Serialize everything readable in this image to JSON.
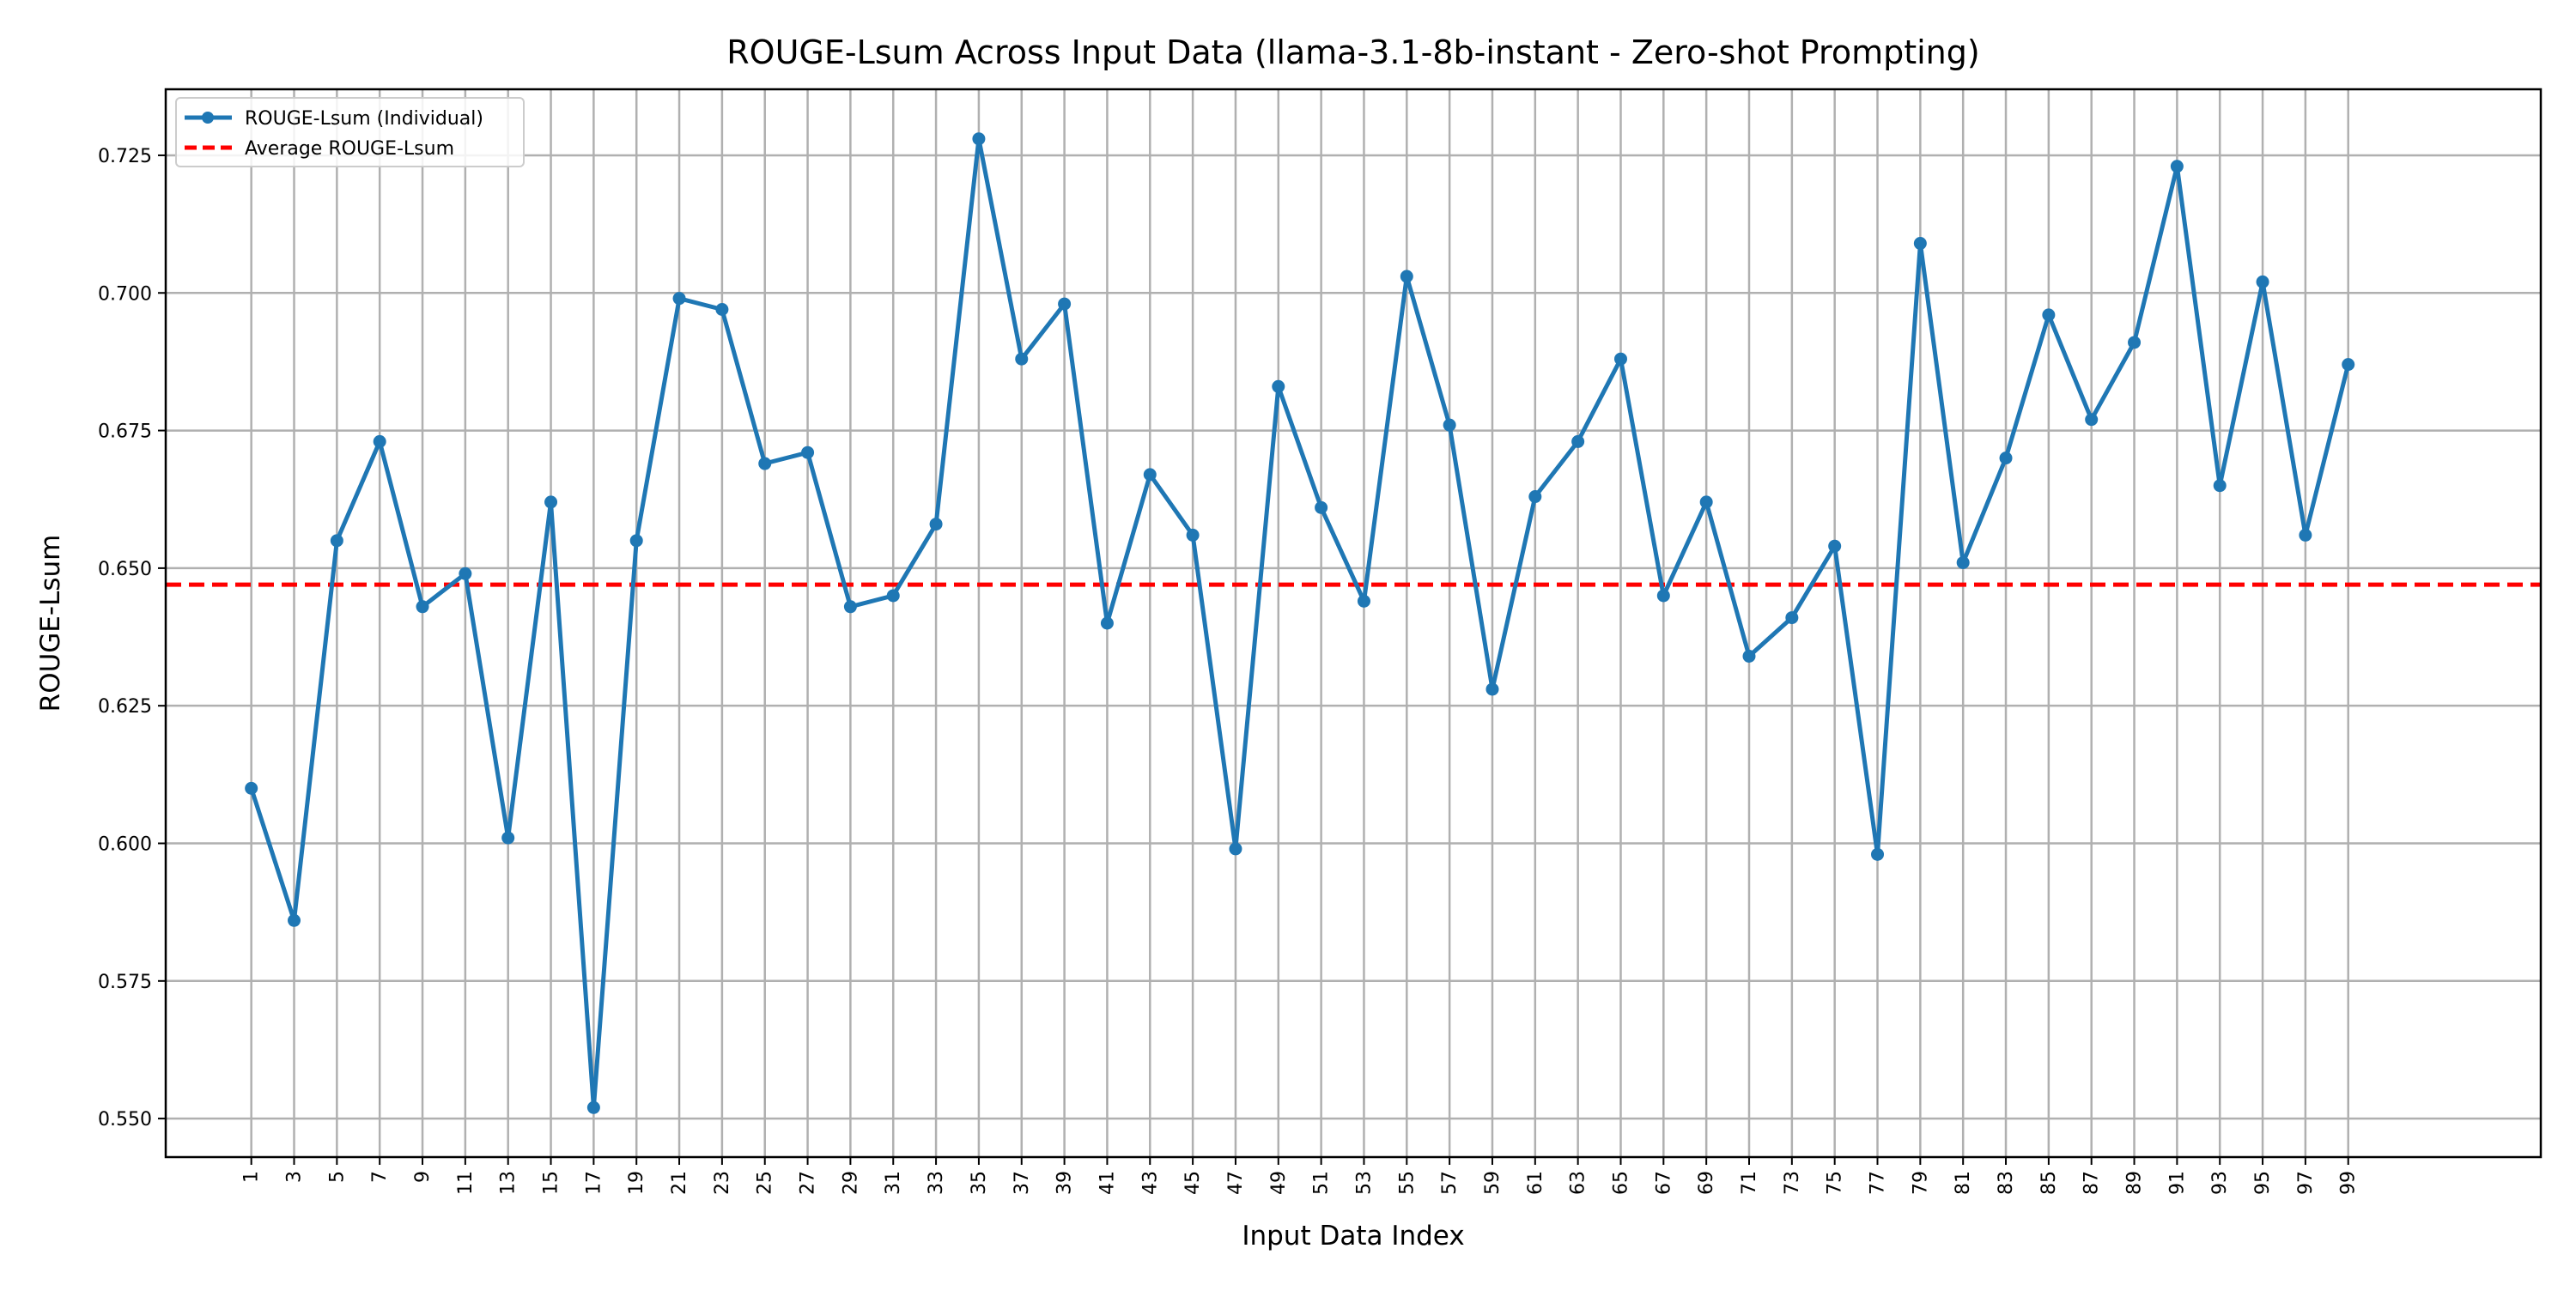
{
  "chart_data": {
    "type": "line",
    "title": "ROUGE-Lsum Across Input Data (llama-3.1-8b-instant - Zero-shot Prompting)",
    "xlabel": "Input Data Index",
    "ylabel": "ROUGE-Lsum",
    "xlim": [
      -3,
      108
    ],
    "ylim": [
      0.543,
      0.737
    ],
    "x_ticks": [
      1,
      3,
      5,
      7,
      9,
      11,
      13,
      15,
      17,
      19,
      21,
      23,
      25,
      27,
      29,
      31,
      33,
      35,
      37,
      39,
      41,
      43,
      45,
      47,
      49,
      51,
      53,
      55,
      57,
      59,
      61,
      63,
      65,
      67,
      69,
      71,
      73,
      75,
      77,
      79,
      81,
      83,
      85,
      87,
      89,
      91,
      93,
      95,
      97,
      99
    ],
    "x_tick_labels": [
      "1",
      "3",
      "5",
      "7",
      "9",
      "11",
      "13",
      "15",
      "17",
      "19",
      "21",
      "23",
      "25",
      "27",
      "29",
      "31",
      "33",
      "35",
      "37",
      "39",
      "41",
      "43",
      "45",
      "47",
      "49",
      "51",
      "53",
      "55",
      "57",
      "59",
      "61",
      "63",
      "65",
      "67",
      "69",
      "71",
      "73",
      "75",
      "77",
      "79",
      "81",
      "83",
      "85",
      "87",
      "89",
      "91",
      "93",
      "95",
      "97",
      "99"
    ],
    "y_ticks": [
      0.55,
      0.575,
      0.6,
      0.625,
      0.65,
      0.675,
      0.7,
      0.725
    ],
    "y_tick_labels": [
      "0.550",
      "0.575",
      "0.600",
      "0.625",
      "0.650",
      "0.675",
      "0.700",
      "0.725"
    ],
    "grid": true,
    "legend_position": "top-left",
    "series": [
      {
        "name": "ROUGE-Lsum (Individual)",
        "style": "solid-line-with-markers",
        "color": "#1f77b4",
        "x": [
          1,
          3,
          5,
          7,
          9,
          11,
          13,
          15,
          17,
          19,
          21,
          23,
          25,
          27,
          29,
          31,
          33,
          35,
          37,
          39,
          41,
          43,
          45,
          47,
          49,
          51,
          53,
          55,
          57,
          59,
          61,
          63,
          65,
          67,
          69,
          71,
          73,
          75,
          77,
          79,
          81,
          83,
          85,
          87,
          89,
          91,
          93,
          95,
          97,
          99
        ],
        "values": [
          0.61,
          0.586,
          0.655,
          0.673,
          0.643,
          0.649,
          0.601,
          0.662,
          0.552,
          0.655,
          0.699,
          0.697,
          0.669,
          0.671,
          0.643,
          0.645,
          0.658,
          0.728,
          0.688,
          0.698,
          0.64,
          0.667,
          0.656,
          0.599,
          0.683,
          0.661,
          0.644,
          0.703,
          0.676,
          0.628,
          0.663,
          0.673,
          0.688,
          0.645,
          0.662,
          0.634,
          0.641,
          0.654,
          0.598,
          0.709,
          0.651,
          0.67,
          0.696,
          0.677,
          0.691,
          0.723,
          0.665,
          0.702,
          0.656,
          0.687
        ]
      },
      {
        "name": "Average ROUGE-Lsum",
        "style": "dashed-horizontal-line",
        "color": "#ff0000",
        "value": 0.647
      }
    ]
  }
}
